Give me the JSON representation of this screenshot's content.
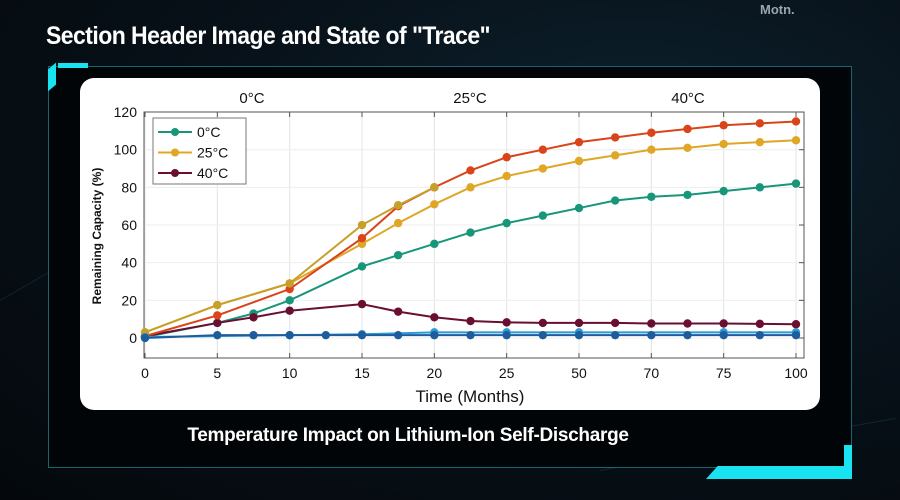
{
  "header": {
    "title": "Section Header Image and State of \"Trace\"",
    "logo_text": "Motn."
  },
  "caption": "Temperature Impact on Lithium-Ion Self-Discharge",
  "chart_data": {
    "type": "line",
    "xlabel": "Time (Months)",
    "ylabel": "Remaining Capacity (%)",
    "x_ticks": [
      0,
      5,
      10,
      15,
      20,
      25,
      50,
      70,
      75,
      100
    ],
    "x_scale": "categorical (evenly spaced ticks)",
    "y_ticks": [
      0,
      20,
      40,
      60,
      80,
      100,
      120
    ],
    "ylim": [
      -11,
      120
    ],
    "grid": true,
    "legend_position": "top-left",
    "top_labels": [
      "0°C",
      "25°C",
      "40°C"
    ],
    "series": [
      {
        "name": "0°C",
        "color": "#17967a",
        "in_legend": true,
        "x": [
          0,
          5,
          7.5,
          10,
          15,
          17.5,
          20,
          22.5,
          25,
          37.5,
          50,
          60,
          70,
          72.5,
          75,
          87.5,
          100
        ],
        "y": [
          0.5,
          8,
          13,
          20,
          38,
          44,
          50,
          56,
          61,
          65,
          69,
          73,
          75,
          76,
          78,
          80,
          82
        ]
      },
      {
        "name": "25°C",
        "color": "#e0a626",
        "in_legend": true,
        "x": [
          0,
          5,
          10,
          15,
          17.5,
          20,
          22.5,
          25,
          37.5,
          50,
          60,
          70,
          72.5,
          75,
          87.5,
          100
        ],
        "y": [
          3,
          17.5,
          29,
          50,
          61,
          71,
          80,
          86,
          90,
          94,
          97,
          100,
          101,
          103,
          104,
          105
        ]
      },
      {
        "name": "40°C",
        "color": "#6a0f32",
        "in_legend": true,
        "x": [
          0,
          5,
          7.5,
          10,
          15,
          17.5,
          20,
          22.5,
          25,
          37.5,
          50,
          60,
          70,
          72.5,
          75,
          87.5,
          100
        ],
        "y": [
          1,
          8,
          11,
          14.5,
          18,
          14,
          11,
          9,
          8.3,
          8,
          8,
          8,
          7.7,
          7.7,
          7.7,
          7.5,
          7.3
        ]
      },
      {
        "color": "#d9441a",
        "in_legend": false,
        "x": [
          0,
          5,
          10,
          15,
          17.5,
          20,
          22.5,
          25,
          37.5,
          50,
          60,
          70,
          72.5,
          75,
          87.5,
          100
        ],
        "y": [
          1,
          12,
          26,
          53,
          70,
          80,
          89,
          96,
          100,
          104,
          106.5,
          109,
          111,
          113,
          114,
          115
        ]
      },
      {
        "color": "#c7a02a",
        "in_legend": false,
        "x": [
          0,
          5,
          10,
          15,
          17.5,
          20
        ],
        "y": [
          3,
          17.5,
          29,
          60,
          70.5,
          80
        ]
      },
      {
        "color": "#2a9ad8",
        "in_legend": false,
        "x": [
          0,
          10,
          15,
          20,
          25,
          50,
          75,
          100
        ],
        "y": [
          0.5,
          1.5,
          2,
          3,
          3,
          3,
          3,
          3
        ]
      },
      {
        "color": "#1f5c9c",
        "in_legend": false,
        "x": [
          0,
          5,
          7.5,
          10,
          12.5,
          15,
          17.5,
          20,
          22.5,
          25,
          37.5,
          50,
          60,
          70,
          72.5,
          75,
          87.5,
          100
        ],
        "y": [
          0,
          1.5,
          1.5,
          1.5,
          1.5,
          1.5,
          1.5,
          1.5,
          1.5,
          1.5,
          1.5,
          1.5,
          1.5,
          1.5,
          1.5,
          1.5,
          1.5,
          1.5
        ]
      }
    ]
  }
}
